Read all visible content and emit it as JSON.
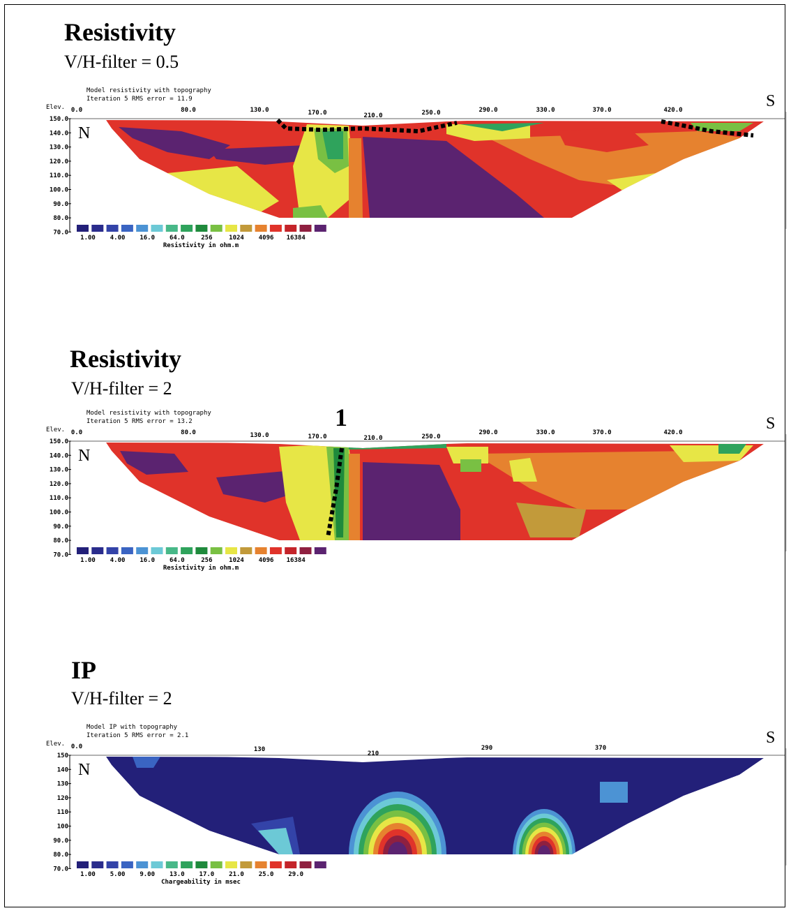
{
  "chart_data": [
    {
      "type": "heatmap",
      "title": "Resistivity",
      "subtitle": "V/H-filter = 0.5",
      "model_title": "Model resistivity with topography",
      "iteration_line": "Iteration 5 RMS error = 11.9",
      "elev_label": "Elev.",
      "y_ticks": [
        "150.0",
        "140.0",
        "130.0",
        "120.0",
        "110.0",
        "100.0",
        "90.0",
        "80.0",
        "70.0"
      ],
      "x_ticks": [
        "0.0",
        "80.0",
        "130.0",
        "170.0",
        "210.0",
        "250.0",
        "290.0",
        "330.0",
        "370.0",
        "420.0"
      ],
      "ylim": [
        70,
        150
      ],
      "left_label": "N",
      "right_label": "S",
      "legend_ticks": [
        "1.00",
        "4.00",
        "16.0",
        "64.0",
        "256",
        "1024",
        "4096",
        "16384"
      ],
      "legend_title": "Resistivity in ohm.m",
      "colors": [
        "#232079",
        "#2a2c8c",
        "#3343a8",
        "#3a64c2",
        "#4c93d4",
        "#6cc9d6",
        "#48b888",
        "#2fa35c",
        "#1f8a3c",
        "#79c043",
        "#e7e646",
        "#c29a3a",
        "#e6822f",
        "#e0332a",
        "#c4242a",
        "#8f2040",
        "#5b2370"
      ]
    },
    {
      "type": "heatmap",
      "title": "Resistivity",
      "subtitle": "V/H-filter = 2",
      "model_title": "Model resistivity with topography",
      "iteration_line": "Iteration 5 RMS error = 13.2",
      "elev_label": "Elev.",
      "y_ticks": [
        "150.0",
        "140.0",
        "130.0",
        "120.0",
        "110.0",
        "100.0",
        "90.0",
        "80.0",
        "70.0"
      ],
      "x_ticks": [
        "0.0",
        "80.0",
        "130.0",
        "170.0",
        "210.0",
        "250.0",
        "290.0",
        "330.0",
        "370.0",
        "420.0"
      ],
      "ylim": [
        70,
        150
      ],
      "left_label": "N",
      "right_label": "S",
      "annotation": "1",
      "legend_ticks": [
        "1.00",
        "4.00",
        "16.0",
        "64.0",
        "256",
        "1024",
        "4096",
        "16384"
      ],
      "legend_title": "Resistivity in ohm.m",
      "colors": [
        "#232079",
        "#2a2c8c",
        "#3343a8",
        "#3a64c2",
        "#4c93d4",
        "#6cc9d6",
        "#48b888",
        "#2fa35c",
        "#1f8a3c",
        "#79c043",
        "#e7e646",
        "#c29a3a",
        "#e6822f",
        "#e0332a",
        "#c4242a",
        "#8f2040",
        "#5b2370"
      ]
    },
    {
      "type": "heatmap",
      "title": "IP",
      "subtitle": "V/H-filter = 2",
      "model_title": "Model IP with topography",
      "iteration_line": "Iteration 5 RMS error = 2.1",
      "elev_label": "Elev.",
      "y_ticks": [
        "150",
        "140",
        "130",
        "120",
        "110",
        "100",
        "90.0",
        "80.0",
        "70.0"
      ],
      "x_ticks": [
        "0.0",
        "130",
        "210",
        "290",
        "370"
      ],
      "ylim": [
        70,
        150
      ],
      "left_label": "N",
      "right_label": "S",
      "legend_ticks": [
        "1.00",
        "5.00",
        "9.00",
        "13.0",
        "17.0",
        "21.0",
        "25.0",
        "29.0"
      ],
      "legend_title": "Chargeability in msec",
      "colors": [
        "#232079",
        "#2a2c8c",
        "#3343a8",
        "#3a64c2",
        "#4c93d4",
        "#6cc9d6",
        "#48b888",
        "#2fa35c",
        "#1f8a3c",
        "#79c043",
        "#e7e646",
        "#c29a3a",
        "#e6822f",
        "#e0332a",
        "#c4242a",
        "#8f2040",
        "#5b2370"
      ]
    }
  ]
}
